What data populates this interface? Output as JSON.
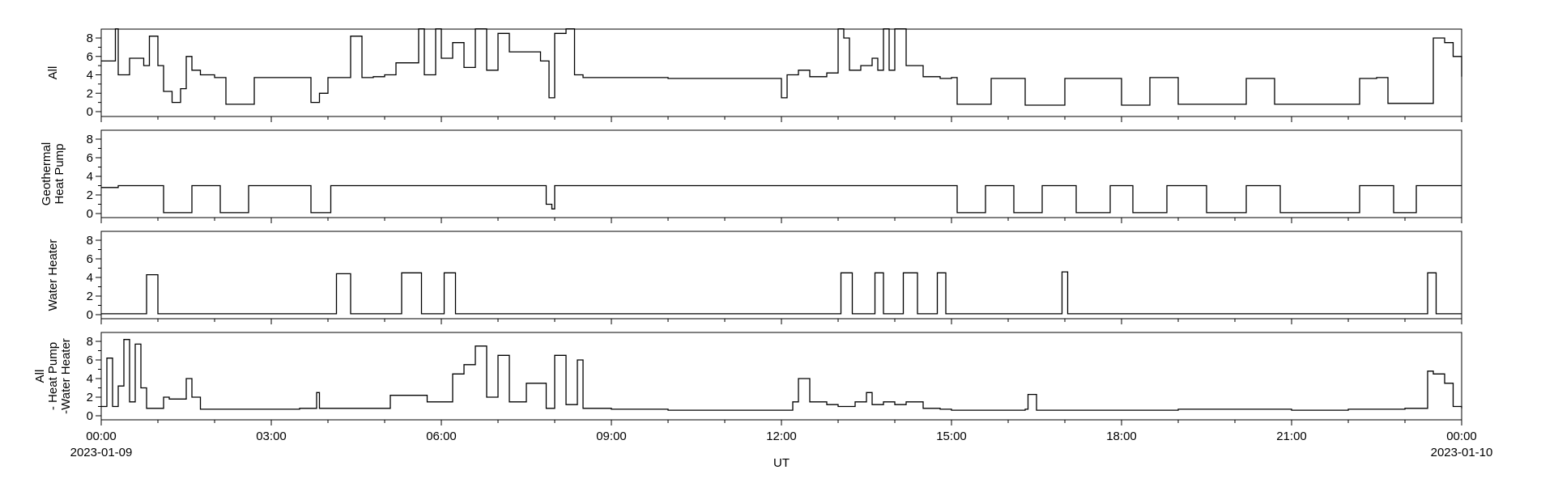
{
  "chart_data": {
    "type": "line",
    "xlabel": "UT",
    "x_range": [
      "2023-01-09 00:00",
      "2023-01-10 00:00"
    ],
    "x_tick_labels": [
      "00:00",
      "03:00",
      "06:00",
      "09:00",
      "12:00",
      "15:00",
      "18:00",
      "21:00",
      "00:00"
    ],
    "x_date_labels": {
      "start": "2023-01-09",
      "end": "2023-01-10"
    },
    "y_tick_labels": [
      "0",
      "2",
      "4",
      "6",
      "8"
    ],
    "ylim": [
      0,
      9
    ],
    "grid": false,
    "line_color": "#000000",
    "panels": [
      {
        "ylabel": [
          "All"
        ],
        "series": {
          "x_hours": [
            0,
            0.25,
            0.3,
            0.5,
            0.75,
            0.85,
            1.0,
            1.1,
            1.25,
            1.4,
            1.5,
            1.6,
            1.75,
            2.0,
            2.2,
            2.5,
            2.7,
            3.0,
            3.3,
            3.6,
            3.7,
            3.85,
            4.0,
            4.2,
            4.4,
            4.6,
            4.8,
            5.0,
            5.2,
            5.35,
            5.6,
            5.7,
            5.9,
            6.0,
            6.2,
            6.4,
            6.6,
            6.8,
            7.0,
            7.2,
            7.5,
            7.75,
            7.9,
            8.0,
            8.2,
            8.35,
            8.5,
            9.0,
            10.0,
            11.0,
            11.8,
            12.0,
            12.1,
            12.3,
            12.5,
            12.8,
            13.0,
            13.1,
            13.2,
            13.4,
            13.6,
            13.7,
            13.8,
            13.9,
            14.0,
            14.2,
            14.5,
            14.8,
            15.0,
            15.1,
            15.5,
            15.7,
            16.0,
            16.3,
            16.5,
            16.9,
            17.0,
            17.1,
            17.5,
            17.9,
            18.0,
            18.2,
            18.5,
            18.8,
            19.0,
            19.5,
            20.0,
            20.2,
            20.5,
            20.7,
            21.0,
            21.5,
            22.0,
            22.2,
            22.5,
            22.7,
            23.0,
            23.3,
            23.5,
            23.7,
            23.85,
            24.0
          ],
          "values": [
            5.5,
            9.0,
            4.0,
            5.8,
            5.0,
            8.2,
            5.0,
            2.2,
            1.0,
            2.5,
            6.0,
            4.5,
            4.0,
            3.7,
            0.8,
            0.8,
            3.7,
            3.7,
            3.7,
            3.7,
            1.0,
            2.0,
            3.7,
            3.7,
            8.2,
            3.7,
            3.8,
            4.0,
            5.3,
            5.3,
            9.0,
            4.0,
            9.0,
            5.8,
            7.5,
            4.8,
            9.0,
            4.5,
            8.5,
            6.5,
            6.5,
            5.5,
            1.5,
            8.5,
            9.0,
            4.0,
            3.7,
            3.7,
            3.6,
            3.6,
            3.6,
            1.5,
            4.0,
            4.5,
            3.8,
            4.2,
            9.0,
            8.0,
            4.5,
            5.0,
            5.8,
            4.5,
            9.0,
            4.5,
            9.0,
            5.0,
            3.8,
            3.6,
            3.7,
            0.8,
            0.8,
            3.6,
            3.6,
            0.7,
            0.7,
            0.7,
            3.6,
            3.6,
            3.6,
            3.6,
            0.7,
            0.7,
            3.7,
            3.7,
            0.8,
            0.8,
            0.8,
            3.6,
            3.6,
            0.8,
            0.8,
            0.8,
            0.8,
            3.6,
            3.7,
            0.9,
            0.9,
            0.9,
            8.0,
            7.5,
            6.0,
            3.8
          ]
        }
      },
      {
        "ylabel": [
          "Geothermal",
          "Heat Pump"
        ],
        "series": {
          "x_hours": [
            0,
            0.3,
            1.0,
            1.1,
            1.5,
            1.6,
            2.0,
            2.1,
            2.5,
            2.6,
            3.0,
            3.5,
            3.7,
            4.0,
            4.05,
            4.5,
            5.0,
            6.0,
            7.0,
            7.8,
            7.85,
            7.95,
            8.0,
            9.0,
            10.0,
            11.0,
            12.0,
            12.05,
            13.0,
            14.0,
            15.0,
            15.1,
            15.5,
            15.6,
            16.0,
            16.1,
            16.5,
            16.6,
            17.0,
            17.2,
            17.6,
            17.8,
            18.0,
            18.2,
            18.6,
            18.8,
            19.0,
            19.5,
            20.0,
            20.2,
            20.6,
            20.8,
            21.0,
            21.5,
            22.0,
            22.2,
            22.6,
            22.8,
            23.0,
            23.2,
            23.5,
            24.0
          ],
          "values": [
            2.8,
            3.0,
            3.0,
            0.1,
            0.1,
            3.0,
            3.0,
            0.1,
            0.1,
            3.0,
            3.0,
            3.0,
            0.1,
            0.1,
            3.0,
            3.0,
            3.0,
            3.0,
            3.0,
            3.0,
            1.0,
            0.5,
            3.0,
            3.0,
            3.0,
            3.0,
            3.0,
            3.0,
            3.0,
            3.0,
            3.0,
            0.1,
            0.1,
            3.0,
            3.0,
            0.1,
            0.1,
            3.0,
            3.0,
            0.1,
            0.1,
            3.0,
            3.0,
            0.1,
            0.1,
            3.0,
            3.0,
            0.1,
            0.1,
            3.0,
            3.0,
            0.1,
            0.1,
            0.1,
            0.1,
            3.0,
            3.0,
            0.1,
            0.1,
            3.0,
            3.0,
            3.0
          ]
        }
      },
      {
        "ylabel": [
          "Water Heater"
        ],
        "series": {
          "x_hours": [
            0,
            0.75,
            0.8,
            0.95,
            1.0,
            4.1,
            4.15,
            4.35,
            4.4,
            5.2,
            5.3,
            5.6,
            5.65,
            6.0,
            6.05,
            6.2,
            6.25,
            13.0,
            13.05,
            13.2,
            13.25,
            13.6,
            13.65,
            13.75,
            13.8,
            14.1,
            14.15,
            14.35,
            14.4,
            14.7,
            14.75,
            14.85,
            14.9,
            16.9,
            16.95,
            17.0,
            17.05,
            23.35,
            23.4,
            23.5,
            23.55,
            24.0
          ],
          "values": [
            0.1,
            0.1,
            4.3,
            4.3,
            0.1,
            0.1,
            4.4,
            4.4,
            0.1,
            0.1,
            4.5,
            4.5,
            0.1,
            0.1,
            4.5,
            4.5,
            0.1,
            0.1,
            4.5,
            4.5,
            0.1,
            0.1,
            4.5,
            4.5,
            0.1,
            0.1,
            4.5,
            4.5,
            0.1,
            0.1,
            4.5,
            4.5,
            0.1,
            0.1,
            4.6,
            4.6,
            0.1,
            0.1,
            4.5,
            4.5,
            0.1,
            0.1
          ]
        }
      },
      {
        "ylabel": [
          "All",
          "- Heat Pump",
          "-Water Heater"
        ],
        "series": {
          "x_hours": [
            0,
            0.1,
            0.2,
            0.3,
            0.4,
            0.5,
            0.6,
            0.7,
            0.8,
            1.0,
            1.1,
            1.2,
            1.5,
            1.6,
            1.75,
            2.0,
            2.5,
            3.0,
            3.5,
            3.8,
            3.85,
            4.0,
            4.5,
            5.0,
            5.1,
            5.5,
            5.75,
            6.0,
            6.2,
            6.4,
            6.6,
            6.8,
            7.0,
            7.2,
            7.5,
            7.75,
            7.85,
            8.0,
            8.2,
            8.4,
            8.5,
            9.0,
            10.0,
            11.0,
            11.9,
            12.0,
            12.2,
            12.3,
            12.5,
            12.8,
            13.0,
            13.3,
            13.5,
            13.6,
            13.8,
            14.0,
            14.2,
            14.5,
            14.8,
            15.0,
            15.5,
            16.0,
            16.3,
            16.35,
            16.5,
            17.0,
            18.0,
            18.5,
            19.0,
            20.0,
            21.0,
            22.0,
            23.0,
            23.4,
            23.5,
            23.7,
            23.85,
            24.0
          ],
          "values": [
            1.0,
            6.2,
            1.0,
            3.2,
            8.2,
            1.5,
            7.7,
            3.0,
            0.8,
            0.8,
            2.0,
            1.8,
            4.0,
            2.0,
            0.7,
            0.7,
            0.7,
            0.7,
            0.8,
            2.5,
            0.8,
            0.8,
            0.8,
            0.8,
            2.2,
            2.2,
            1.5,
            1.5,
            4.5,
            5.5,
            7.5,
            2.0,
            6.5,
            1.5,
            3.5,
            3.5,
            0.8,
            6.5,
            1.2,
            6.0,
            0.8,
            0.7,
            0.6,
            0.6,
            0.6,
            0.6,
            1.5,
            4.0,
            1.5,
            1.2,
            1.0,
            1.5,
            2.5,
            1.2,
            1.5,
            1.2,
            1.5,
            0.8,
            0.7,
            0.6,
            0.6,
            0.6,
            0.7,
            2.3,
            0.6,
            0.6,
            0.6,
            0.6,
            0.7,
            0.7,
            0.6,
            0.7,
            0.8,
            4.8,
            4.5,
            3.5,
            1.0,
            0.8
          ]
        }
      }
    ]
  }
}
